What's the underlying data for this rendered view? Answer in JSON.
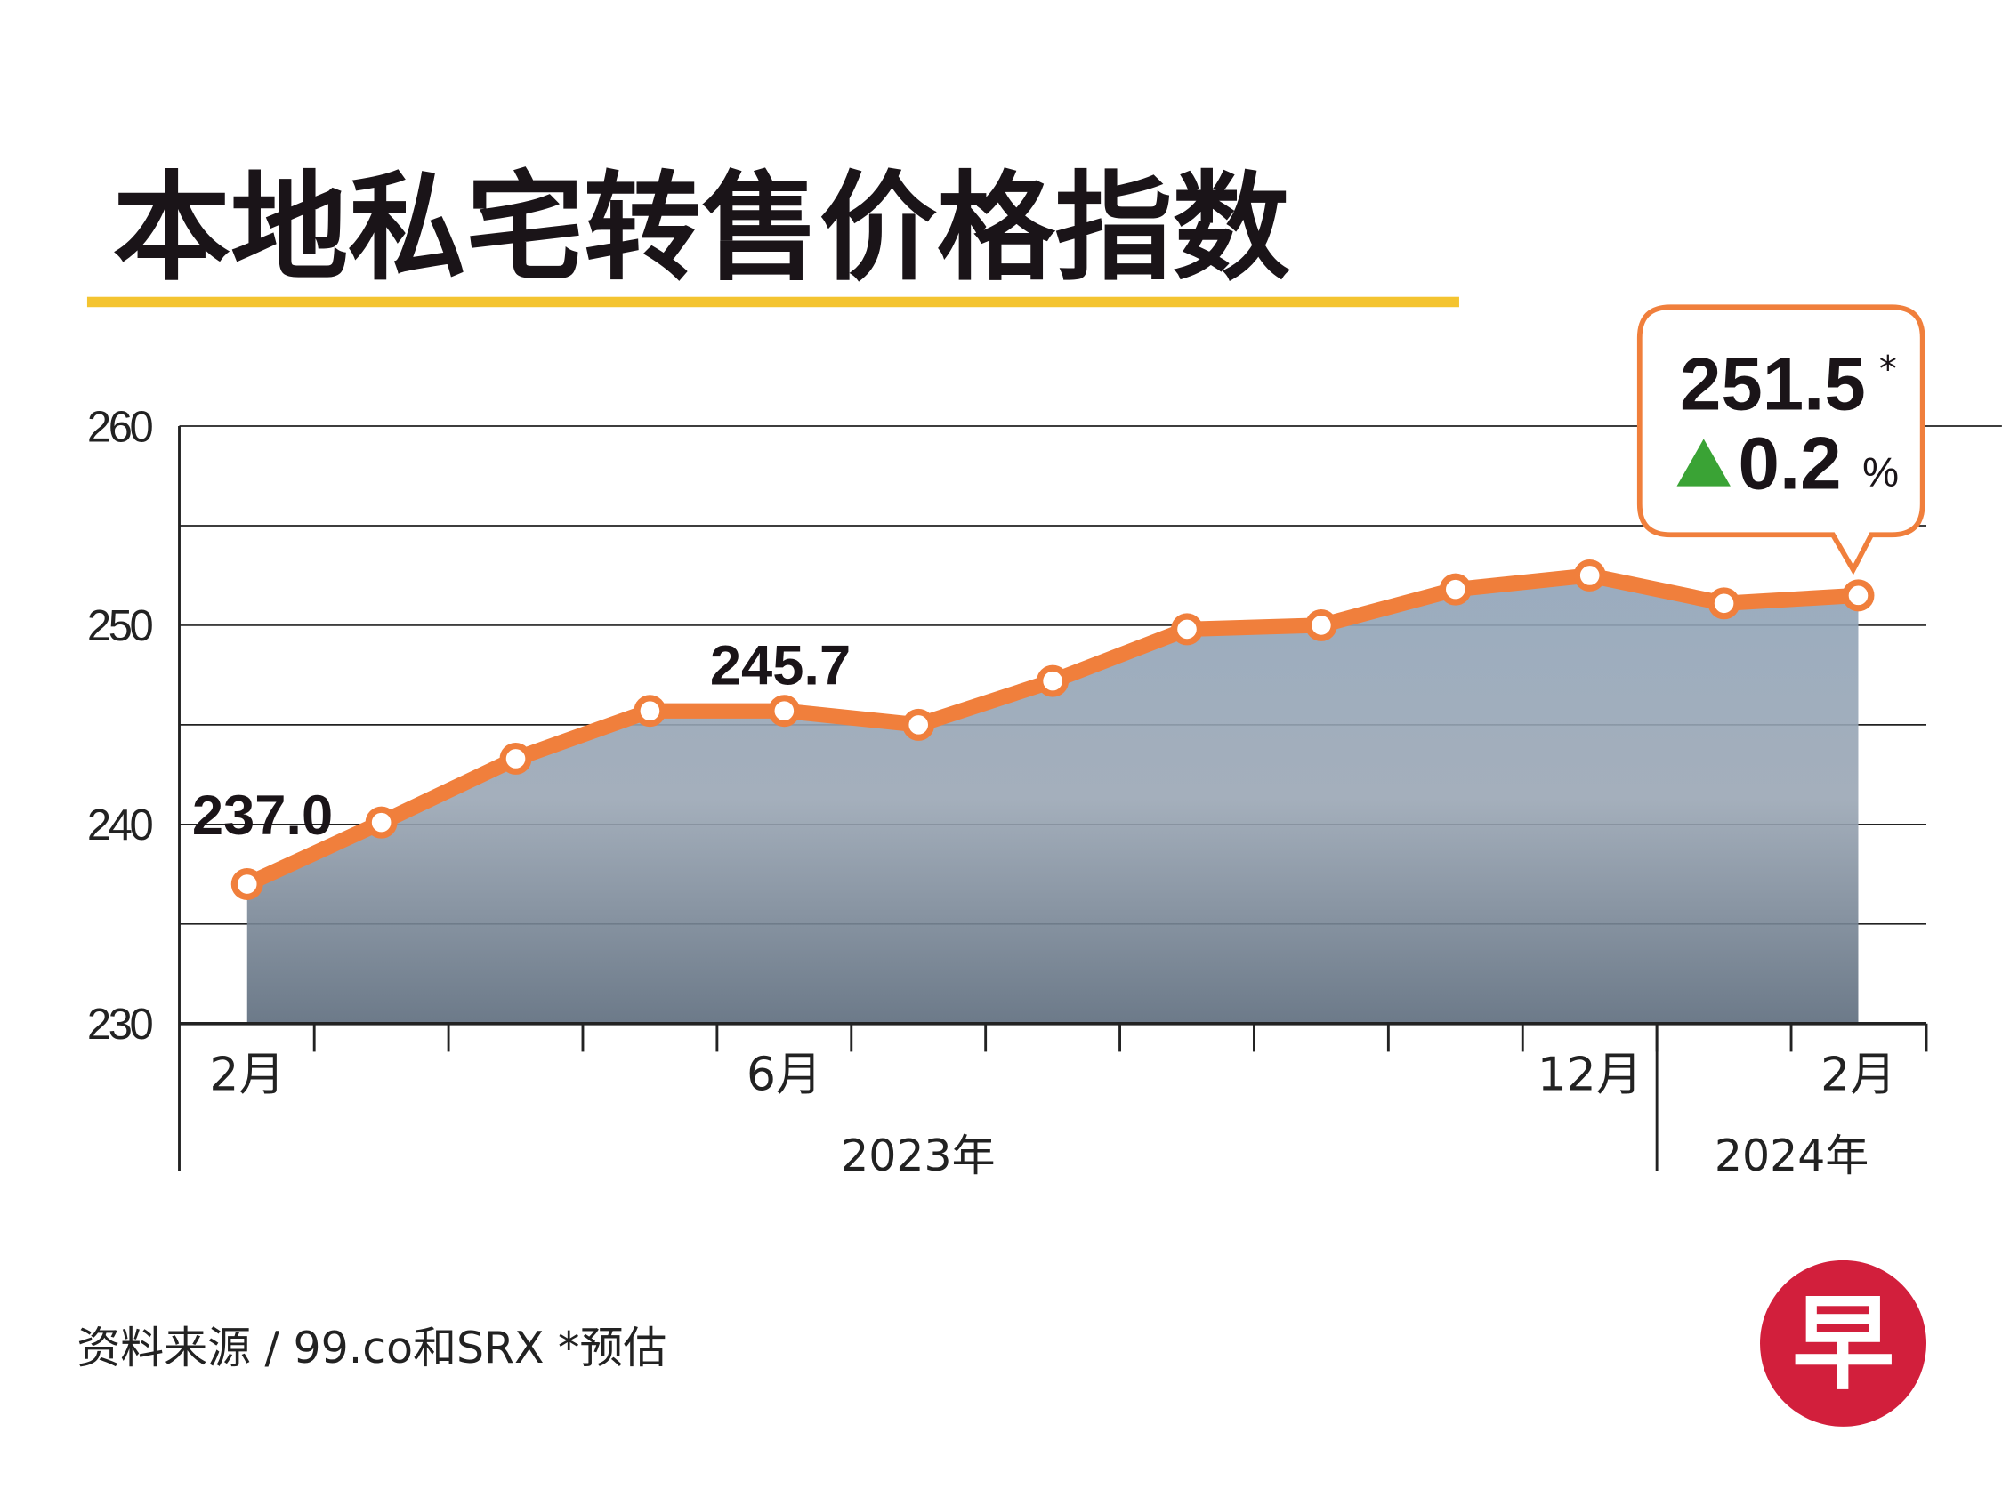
{
  "title": "本地私宅转售价格指数",
  "source": "资料来源 / 99.co和SRX  *预估",
  "logo": "早",
  "chart_data": {
    "type": "line",
    "categories": [
      "2月",
      null,
      null,
      null,
      "6月",
      null,
      null,
      null,
      null,
      null,
      "12月",
      null,
      "2月"
    ],
    "years": [
      "2023年",
      "2024年"
    ],
    "values": [
      237.0,
      240.1,
      243.3,
      245.7,
      245.7,
      245.0,
      247.2,
      249.8,
      250.0,
      251.8,
      252.5,
      251.1,
      251.5
    ],
    "value_labels": [
      "237.0",
      null,
      null,
      null,
      "245.7",
      null,
      null,
      null,
      null,
      null,
      null,
      null,
      "251.5"
    ],
    "color": "#f07f3c",
    "ylim": [
      230,
      260
    ],
    "yticks": [
      230,
      240,
      250,
      260
    ],
    "minor_yticks": [
      235,
      245,
      255
    ],
    "grid": true,
    "estimate_marker": "*",
    "change": 0.2,
    "change_unit": "%"
  }
}
